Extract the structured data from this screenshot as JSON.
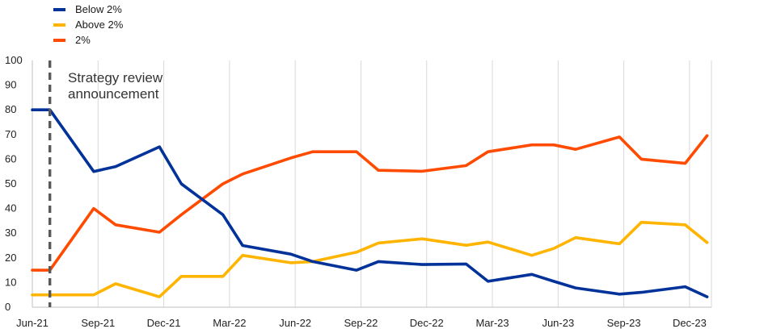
{
  "chart_data": {
    "type": "line",
    "title": "",
    "xlabel": "",
    "ylabel": "",
    "ylim": [
      0,
      100
    ],
    "yticks": [
      0,
      10,
      20,
      30,
      40,
      50,
      60,
      70,
      80,
      90,
      100
    ],
    "x_tick_labels": [
      "Jun-21",
      "Sep-21",
      "Dec-21",
      "Mar-22",
      "Jun-22",
      "Sep-22",
      "Dec-22",
      "Mar-23",
      "Jun-23",
      "Sep-23",
      "Dec-23"
    ],
    "x_range_months": [
      0,
      31
    ],
    "grid": "vertical",
    "legend_position": "top-left",
    "annotation": {
      "lines": [
        "Strategy review",
        "announcement"
      ],
      "x_month": 0.8
    },
    "series": [
      {
        "name": "Below 2%",
        "color": "#003299",
        "points": [
          [
            0,
            80
          ],
          [
            0.8,
            80
          ],
          [
            2.8,
            55
          ],
          [
            3.8,
            57
          ],
          [
            5.8,
            65
          ],
          [
            6.8,
            50
          ],
          [
            8.7,
            37.5
          ],
          [
            9.6,
            25
          ],
          [
            11.8,
            21.5
          ],
          [
            12.8,
            18.5
          ],
          [
            14.8,
            15
          ],
          [
            15.8,
            18.5
          ],
          [
            17.8,
            17.3
          ],
          [
            19.8,
            17.5
          ],
          [
            20.8,
            10.5
          ],
          [
            22.8,
            13.3
          ],
          [
            23.8,
            10.5
          ],
          [
            24.8,
            7.8
          ],
          [
            26.8,
            5.3
          ],
          [
            27.8,
            6
          ],
          [
            29.8,
            8.3
          ],
          [
            30.8,
            4.2
          ]
        ]
      },
      {
        "name": "Above 2%",
        "color": "#FFB400",
        "points": [
          [
            0,
            5
          ],
          [
            0.8,
            5
          ],
          [
            2.8,
            5
          ],
          [
            3.8,
            9.5
          ],
          [
            5.8,
            4.2
          ],
          [
            6.8,
            12.5
          ],
          [
            8.7,
            12.5
          ],
          [
            9.6,
            21
          ],
          [
            11.8,
            18
          ],
          [
            12.8,
            18.5
          ],
          [
            14.8,
            22.3
          ],
          [
            15.8,
            26
          ],
          [
            17.8,
            27.7
          ],
          [
            19.8,
            25.1
          ],
          [
            20.8,
            26.4
          ],
          [
            22.8,
            21
          ],
          [
            23.8,
            23.8
          ],
          [
            24.8,
            28.2
          ],
          [
            26.8,
            25.7
          ],
          [
            27.8,
            34.4
          ],
          [
            29.8,
            33.4
          ],
          [
            30.8,
            26.2
          ]
        ]
      },
      {
        "name": "2%",
        "color": "#FF4B00",
        "points": [
          [
            0,
            15
          ],
          [
            0.8,
            15
          ],
          [
            2.8,
            40
          ],
          [
            3.8,
            33.4
          ],
          [
            5.8,
            30.4
          ],
          [
            6.8,
            37.5
          ],
          [
            8.7,
            50
          ],
          [
            9.6,
            54
          ],
          [
            11.8,
            60.5
          ],
          [
            12.8,
            63
          ],
          [
            14.8,
            63
          ],
          [
            15.8,
            55.5
          ],
          [
            17.8,
            55.1
          ],
          [
            19.8,
            57.4
          ],
          [
            20.8,
            63
          ],
          [
            22.8,
            65.8
          ],
          [
            23.8,
            65.8
          ],
          [
            24.8,
            64
          ],
          [
            26.8,
            69
          ],
          [
            27.8,
            60
          ],
          [
            29.8,
            58.3
          ],
          [
            30.8,
            69.5
          ]
        ]
      }
    ]
  }
}
